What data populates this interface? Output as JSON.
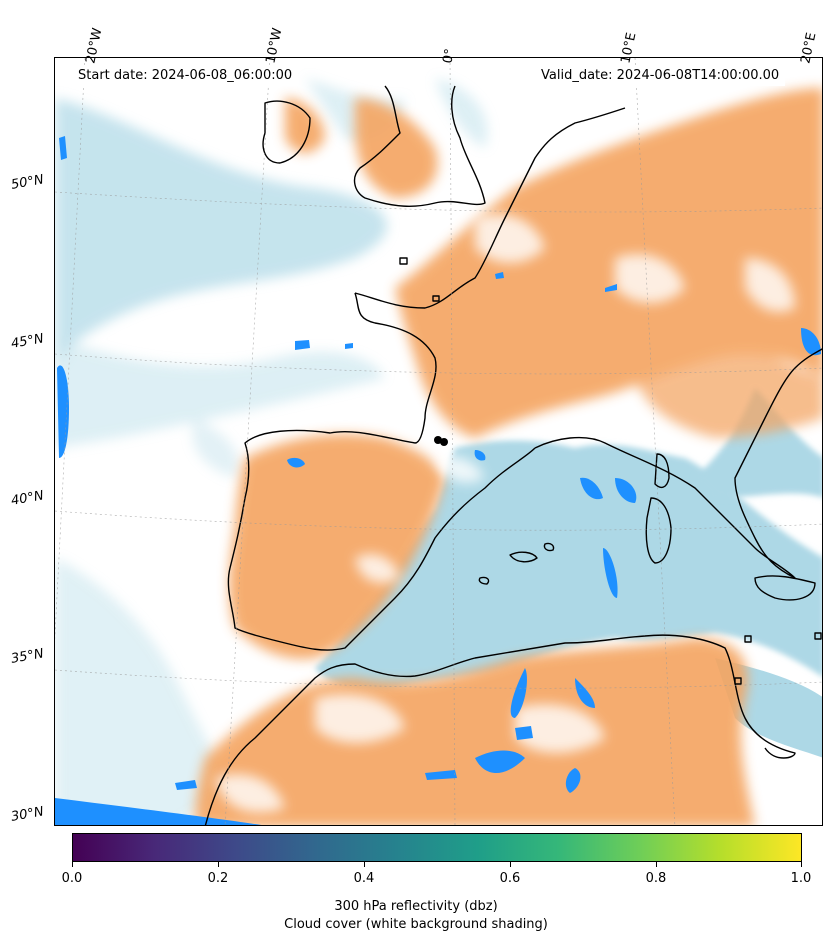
{
  "header": {
    "start_date": "Start date: 2024-06-08_06:00:00",
    "valid_date": "Valid_date: 2024-06-08T14:00:00.00"
  },
  "map": {
    "projection": "Lambert conformal",
    "lon_labels": [
      "20°W",
      "10°W",
      "0°",
      "10°E",
      "20°E"
    ],
    "lat_labels": [
      "50°N",
      "45°N",
      "40°N",
      "35°N",
      "30°N"
    ],
    "colors": {
      "land_warm": "#f4a460",
      "sea_cool": "#add8e6",
      "reflectivity": "#1e90ff",
      "coastline": "#000000"
    }
  },
  "colorbar": {
    "colormap": "viridis",
    "ticks": [
      "0.0",
      "0.2",
      "0.4",
      "0.6",
      "0.8",
      "1.0"
    ],
    "label_1": "300 hPa reflectivity (dbz)",
    "label_2": "Cloud cover (white background shading)"
  }
}
